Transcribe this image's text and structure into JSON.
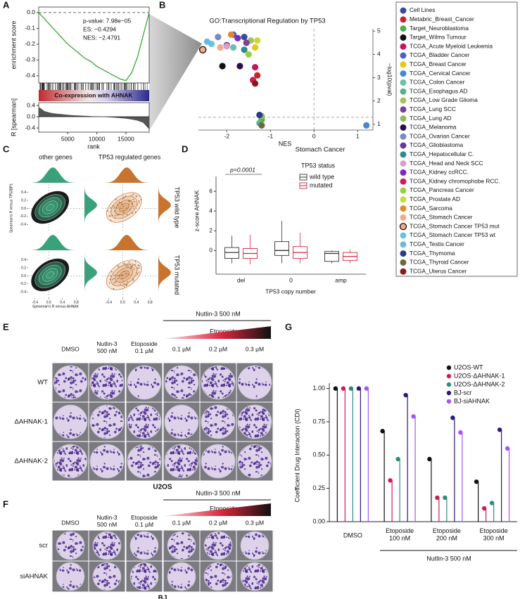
{
  "panel_labels": [
    "A",
    "B",
    "C",
    "D",
    "E",
    "F",
    "G"
  ],
  "chart_data": [
    {
      "type": "line",
      "y_label": "enrichment score",
      "annotations": [
        "p-value: 7.98e−05",
        "ES: −0.4294",
        "NES: −2.4791"
      ],
      "gradient_label": "Co-expression with AHNAK",
      "color": "#3aa935",
      "x": [
        0,
        1000,
        2000,
        3000,
        4000,
        5000,
        6000,
        7000,
        8000,
        9000,
        10000,
        11000,
        12000,
        13000,
        14000,
        15000,
        16000,
        17000,
        18000,
        19000
      ],
      "values": [
        0,
        -0.04,
        -0.08,
        -0.12,
        -0.16,
        -0.2,
        -0.23,
        -0.26,
        -0.29,
        -0.31,
        -0.34,
        -0.36,
        -0.38,
        -0.4,
        -0.42,
        -0.43,
        -0.38,
        -0.28,
        -0.14,
        0
      ],
      "xlim": [
        0,
        19000
      ],
      "ylim": [
        -0.445,
        0.035
      ],
      "yticks": [
        {
          "value": 0,
          "label": "0.0"
        },
        -0.1,
        -0.2,
        -0.3,
        -0.4
      ]
    },
    {
      "type": "area",
      "y_label": "R [spearman]",
      "x_label": "rank",
      "color": "#555555",
      "x": [
        0,
        1000,
        2000,
        3000,
        4000,
        5000,
        6000,
        7000,
        8000,
        9000,
        10000,
        11000,
        12000,
        13000,
        14000,
        15000,
        16000,
        17000,
        18000,
        19000
      ],
      "values": [
        0.35,
        0.2,
        0.14,
        0.11,
        0.09,
        0.07,
        0.05,
        0.04,
        0.03,
        0.02,
        0.01,
        0,
        -0.02,
        -0.03,
        -0.05,
        -0.07,
        -0.1,
        -0.14,
        -0.22,
        -0.45
      ],
      "xlim": [
        0,
        19000
      ],
      "ylim": [
        -0.55,
        0.5
      ],
      "xticks": [
        5000,
        10000,
        15000
      ],
      "yticks": [
        0.4,
        {
          "value": 0,
          "label": "0.0"
        },
        -0.4
      ]
    },
    {
      "type": "scatter",
      "title": "GO:Transcriptional Regulation by TP53",
      "x_label": "NES",
      "y_label": "−log10(pval)",
      "xlim": [
        -2.65,
        1.35
      ],
      "ylim": [
        0.75,
        5.1
      ],
      "xticks": [
        -2,
        -1,
        0,
        1
      ],
      "yticks": [
        1,
        2,
        3,
        4,
        5
      ],
      "vlines": [
        0
      ],
      "hlines": [
        1.3
      ],
      "series": [
        {
          "name": "Cell Lines",
          "color": "#3a4a9e",
          "x": [
            -1.6
          ],
          "values": [
            4.75
          ]
        },
        {
          "name": "Metabric_Breast_Cancer",
          "color": "#c0282e",
          "x": [
            -1.3
          ],
          "values": [
            3.1
          ]
        },
        {
          "name": "Target_Neuroblastoma",
          "color": "#4caf50",
          "x": [
            -1.2
          ],
          "values": [
            1.2
          ]
        },
        {
          "name": "Target_Wilms Tumour",
          "color": "#111111",
          "x": [
            -2.1
          ],
          "values": [
            3.5
          ]
        },
        {
          "name": "TCGA_Acute Myeloid Leukemia",
          "color": "#c2185b",
          "x": [
            -1.35
          ],
          "values": [
            3.45
          ]
        },
        {
          "name": "TCGA_Bladder Cancer",
          "color": "#4a5ec4",
          "x": [
            -1.85
          ],
          "values": [
            4.85
          ]
        },
        {
          "name": "TCGA_Breast Cancer",
          "color": "#e6c619",
          "x": [
            -1.35
          ],
          "values": [
            4.3
          ]
        },
        {
          "name": "TCGA_Cervical Cancer",
          "color": "#4a86d0",
          "x": [
            1.2
          ],
          "values": [
            0.95
          ]
        },
        {
          "name": "TCGA_Colon Cancer",
          "color": "#6cc0b0",
          "x": [
            -1.85
          ],
          "values": [
            4.3
          ]
        },
        {
          "name": "TCGA_Esophagus AD",
          "color": "#5fb08a",
          "x": [
            -1.25
          ],
          "values": [
            1.05
          ]
        },
        {
          "name": "TCGA_Low Grade Glioma",
          "color": "#a8c060",
          "x": [
            -1.45
          ],
          "values": [
            4.6
          ]
        },
        {
          "name": "TCGA_Lung SCC",
          "color": "#7b3fa0",
          "x": [
            -1.55
          ],
          "values": [
            4.5
          ]
        },
        {
          "name": "TCGA_Lung AD",
          "color": "#8fbc5a",
          "x": [
            -1.2
          ],
          "values": [
            1.35
          ]
        },
        {
          "name": "TCGA_Melanoma",
          "color": "#2b0f4a",
          "x": [
            -1.7
          ],
          "values": [
            3.5
          ]
        },
        {
          "name": "TCGA_Ovarian Cancer",
          "color": "#7a8bc0",
          "x": [
            -2.2
          ],
          "values": [
            4.75
          ]
        },
        {
          "name": "TCGA_Glioblastoma",
          "color": "#5e3c99",
          "x": [
            -2.0
          ],
          "values": [
            4.4
          ]
        },
        {
          "name": "TCGA_Hepatocellular C.",
          "color": "#2e8b8b",
          "x": [
            -1.6
          ],
          "values": [
            4.2
          ]
        },
        {
          "name": "TCGA_Head and Neck SCC",
          "color": "#d9a0c8",
          "x": [
            -2.0
          ],
          "values": [
            4.35
          ]
        },
        {
          "name": "TCGA_Kidney ccRCC.",
          "color": "#7b2cbf",
          "x": [
            -1.75
          ],
          "values": [
            4.7
          ]
        },
        {
          "name": "TCGA_Kidney chromophobe RCC.",
          "color": "#d11a5a",
          "x": [
            -1.4
          ],
          "values": [
            2.9
          ]
        },
        {
          "name": "TCGA_Pancreas Cancer",
          "color": "#9ccf3c",
          "x": [
            -1.5
          ],
          "values": [
            4.0
          ]
        },
        {
          "name": "TCGA_Prostate AD",
          "color": "#c8d93a",
          "x": [
            -1.3
          ],
          "values": [
            4.6
          ]
        },
        {
          "name": "TCGA_Sarcoma",
          "color": "#e08a2c",
          "x": [
            -1.9
          ],
          "values": [
            4.85
          ]
        },
        {
          "name": "TCGA_Stomach Cancer",
          "color": "#f4a88c",
          "x": [
            -2.15
          ],
          "values": [
            4.3
          ]
        },
        {
          "name": "TCGA_Stomach Cancer TP53 mut",
          "color": "#f4a88c",
          "stroke": "#000000",
          "x": [
            -2.55
          ],
          "values": [
            4.2
          ]
        },
        {
          "name": "TCGA_Stomach Cancer TP53 wt",
          "color": "#6cc3df",
          "x": [
            -2.35
          ],
          "values": [
            4.45
          ]
        },
        {
          "name": "TCGA_Testis Cancer",
          "color": "#70b8d8",
          "x": [
            -2.45
          ],
          "values": [
            4.55
          ]
        },
        {
          "name": "TCGA_Thymoma",
          "color": "#2a3b8f",
          "x": [
            -1.25
          ],
          "values": [
            1.4
          ]
        },
        {
          "name": "TCGA_Thyroid Cancer",
          "color": "#6b6b3a",
          "x": [
            -1.2
          ],
          "values": [
            0.95
          ]
        },
        {
          "name": "TCGA_Uterus Cancer",
          "color": "#8b1a1a",
          "x": [
            -1.35
          ],
          "values": [
            2.75
          ]
        }
      ]
    },
    {
      "type": "box",
      "title": "Stomach Cancer",
      "legend_title": "TP53 status",
      "y_label": "z-score AHNAK",
      "x_label": "TP53 copy number",
      "annotation": "p=0.0001",
      "categories": [
        "del",
        "0",
        "amp"
      ],
      "ylim": [
        -2.4,
        7.5
      ],
      "yticks": [
        6,
        4,
        2,
        0
      ],
      "series": [
        {
          "name": "wild type",
          "color": "#333333",
          "whisker_low": [
            -1.3,
            -1.3,
            -1.3
          ],
          "q1": [
            -0.8,
            -0.5,
            -1.1
          ],
          "median": [
            -0.2,
            0,
            -0.3
          ],
          "q3": [
            0.3,
            0.9,
            -0.1
          ],
          "whisker_high": [
            1.5,
            3.0,
            0
          ]
        },
        {
          "name": "mutated",
          "color": "#d7263d",
          "whisker_low": [
            -1.4,
            -1.3,
            -1.3
          ],
          "q1": [
            -0.8,
            -0.8,
            -1.0
          ],
          "median": [
            -0.3,
            -0.2,
            -0.6
          ],
          "q3": [
            0.2,
            0.4,
            -0.2
          ],
          "whisker_high": [
            1.6,
            1.8,
            0.1
          ]
        }
      ]
    },
    {
      "type": "bar",
      "y_label": "Coefficient Drug Interaction (CDI)",
      "bottom_label": "Nutlin-3 500 nM",
      "bottom_label_color": "#3a87c8",
      "categories": [
        "DMSO",
        "Etoposide\n100 nM",
        "Etoposide\n200 nM",
        "Etoposide\n300 nM"
      ],
      "category_colors": [
        "#111111",
        "#c0282e",
        "#c0282e",
        "#c0282e"
      ],
      "ylim": [
        0,
        1.04
      ],
      "yticks": [
        {
          "value": 0,
          "label": "0.00"
        },
        {
          "value": 0.25,
          "label": "0.25"
        },
        {
          "value": 0.5,
          "label": "0.50"
        },
        {
          "value": 0.75,
          "label": "0.75"
        },
        {
          "value": 1,
          "label": "1.00"
        }
      ],
      "series": [
        {
          "name": "U2OS-WT",
          "color": "#111111",
          "values": [
            1.0,
            0.68,
            0.47,
            0.3
          ]
        },
        {
          "name": "U2OS-ΔAHNAK-1",
          "color": "#d11a5a",
          "values": [
            1.0,
            0.31,
            0.18,
            0.1
          ]
        },
        {
          "name": "U2OS-ΔAHNAK-2",
          "color": "#2e8b7a",
          "values": [
            1.0,
            0.47,
            0.18,
            0.14
          ]
        },
        {
          "name": "BJ-scr",
          "color": "#2a1a7a",
          "values": [
            1.0,
            0.95,
            0.78,
            0.69
          ]
        },
        {
          "name": "BJ-siAHNAK",
          "color": "#a855f7",
          "values": [
            1.0,
            0.79,
            0.67,
            0.55
          ]
        }
      ]
    }
  ],
  "panel_c": {
    "column_titles": [
      "other genes",
      "TP53 regulated genes"
    ],
    "row_titles": [
      "TP53 wild type",
      "TP53 mutated"
    ],
    "y_label": "Spearman's R versus TP53BP1",
    "x_label": "Spearman's R versus AHNAK",
    "xlim": [
      -0.6,
      1.0
    ],
    "ylim": [
      -0.55,
      0.6
    ],
    "xticks": [
      -0.4,
      {
        "value": 0,
        "label": "0.0"
      },
      0.4,
      0.8
    ],
    "yticks": [
      0.4,
      0.2,
      {
        "value": 0,
        "label": "0.0"
      },
      -0.2,
      -0.4
    ],
    "colors": [
      "#3aa27a",
      "#c8742f"
    ]
  },
  "panel_e": {
    "treatment_label": "Nutlin-3 500 nM",
    "treatment_color": "#3a87c8",
    "gradient_label": "Etoposide",
    "columns": [
      "DMSO",
      "Nutlin-3\n500 nM",
      "Etoposide\n0.1 µM",
      "0.1 µM",
      "0.2 µM",
      "0.3 µM"
    ],
    "column_colors": [
      "#111111",
      "#3a87c8",
      "#c0282e",
      "#c0282e",
      "#c0282e",
      "#c0282e"
    ],
    "rows": [
      "WT",
      "ΔAHNAK-1",
      "ΔAHNAK-2"
    ],
    "cell_line": "U2OS",
    "cell_line_color": "#c0282e"
  },
  "panel_f": {
    "treatment_label": "Nutlin-3 500 nM",
    "treatment_color": "#111111",
    "gradient_label": "Etoposide",
    "columns": [
      "DMSO",
      "Nutlin-3\n500 nM",
      "Etoposide\n0.1 µM",
      "0.1 µM",
      "0.2 µM",
      "0.3 µM"
    ],
    "column_colors": [
      "#111111",
      "#3a87c8",
      "#c0282e",
      "#c0282e",
      "#c0282e",
      "#c0282e"
    ],
    "rows": [
      "scr",
      "siAHNAK"
    ],
    "cell_line": "BJ",
    "cell_line_color": "#3a8a2a"
  }
}
